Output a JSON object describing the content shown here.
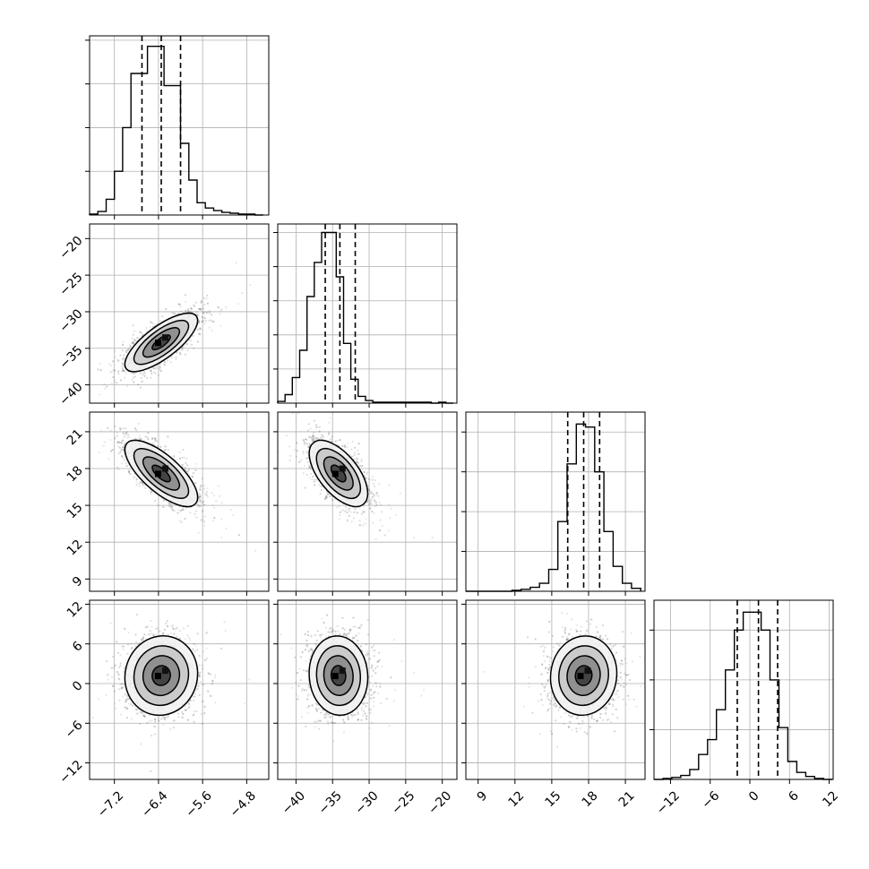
{
  "chart_data": {
    "type": "corner",
    "colors": {
      "ink": "#000000",
      "grid": "#b0b0b0",
      "points": "#606060"
    },
    "grid": true,
    "parameters": [
      {
        "ticks": [
          -7.2,
          -6.4,
          -5.6,
          -4.8
        ],
        "tick_labels": [
          "−7.2",
          "−6.4",
          "−5.6",
          "−4.8"
        ],
        "range": [
          -7.65,
          -4.4
        ],
        "mean": -6.35,
        "sd": 0.33,
        "quantiles": [
          -6.7,
          -6.35,
          -6.0
        ]
      },
      {
        "ticks": [
          -40,
          -35,
          -30,
          -25,
          -20
        ],
        "tick_labels": [
          "−40",
          "−35",
          "−30",
          "−25",
          "−20"
        ],
        "range": [
          -42.5,
          -18.0
        ],
        "mean": -34.2,
        "sd": 2.0,
        "quantiles": [
          -36.0,
          -34.0,
          -31.9
        ]
      },
      {
        "ticks": [
          9,
          12,
          15,
          18,
          21
        ],
        "tick_labels": [
          "9",
          "12",
          "15",
          "18",
          "21"
        ],
        "range": [
          8.0,
          22.6
        ],
        "mean": 17.6,
        "sd": 1.35,
        "quantiles": [
          16.3,
          17.6,
          18.9
        ]
      },
      {
        "ticks": [
          -12,
          -6,
          0,
          6,
          12
        ],
        "tick_labels": [
          "−12",
          "−6",
          "0",
          "6",
          "12"
        ],
        "range": [
          -14.5,
          12.6
        ],
        "mean": 1.2,
        "sd": 3.0,
        "quantiles": [
          -1.9,
          1.3,
          4.2
        ]
      }
    ],
    "histograms": [
      {
        "param": 0,
        "bins": [
          -7.65,
          -7.5,
          -7.35,
          -7.2,
          -7.05,
          -6.9,
          -6.75,
          -6.6,
          -6.45,
          -6.3,
          -6.15,
          -6.0,
          -5.85,
          -5.7,
          -5.55,
          -5.4,
          -5.25,
          -5.1,
          -4.95,
          -4.8,
          -4.65,
          -4.5
        ],
        "counts": [
          1,
          4,
          18,
          50,
          100,
          162,
          162,
          193,
          193,
          148,
          148,
          82,
          40,
          14,
          8,
          5,
          3,
          2,
          1,
          1,
          0
        ],
        "y_ticks": [
          50,
          100,
          150,
          200
        ],
        "y_max": 205
      },
      {
        "param": 1,
        "bins": [
          -42.5,
          -41.5,
          -40.5,
          -39.5,
          -38.5,
          -37.5,
          -36.5,
          -35.5,
          -34.5,
          -33.5,
          -32.5,
          -31.5,
          -30.5,
          -29.5,
          -28.5,
          -27.5,
          -26.5,
          -25.5,
          -24.5,
          -23.5,
          -22.5,
          -21.5,
          -20.5,
          -19.5,
          -18.5
        ],
        "counts": [
          2,
          10,
          30,
          62,
          125,
          165,
          200,
          200,
          148,
          70,
          28,
          8,
          3,
          1,
          1,
          1,
          1,
          1,
          1,
          1,
          1,
          0,
          1,
          0
        ],
        "y_ticks": [
          40,
          80,
          120,
          160,
          200
        ],
        "y_max": 210
      },
      {
        "param": 2,
        "bins": [
          8.0,
          8.75,
          9.5,
          10.25,
          11.0,
          11.75,
          12.5,
          13.25,
          14.0,
          14.75,
          15.5,
          16.25,
          17.0,
          17.75,
          18.5,
          19.25,
          20.0,
          20.75,
          21.5,
          22.25
        ],
        "counts": [
          0,
          0,
          0,
          0,
          0,
          1,
          2,
          4,
          8,
          22,
          70,
          128,
          168,
          165,
          120,
          60,
          25,
          8,
          3
        ],
        "y_ticks": [
          40,
          80,
          120,
          160
        ],
        "y_max": 180
      },
      {
        "param": 3,
        "bins": [
          -14.5,
          -13.15,
          -11.8,
          -10.45,
          -9.1,
          -7.75,
          -6.4,
          -5.05,
          -3.7,
          -2.35,
          -1.0,
          0.35,
          1.7,
          3.05,
          4.4,
          5.75,
          7.1,
          8.45,
          9.8,
          11.15,
          12.5
        ],
        "counts": [
          0,
          1,
          2,
          4,
          10,
          25,
          40,
          70,
          110,
          150,
          168,
          168,
          150,
          100,
          52,
          18,
          7,
          3,
          1,
          0
        ],
        "y_ticks": [
          50,
          100,
          150
        ],
        "y_max": 180
      }
    ],
    "correlations": {
      "1_0": 0.75,
      "2_0": -0.72,
      "2_1": -0.6,
      "3_0": 0.05,
      "3_1": -0.05,
      "3_2": 0.05
    }
  }
}
